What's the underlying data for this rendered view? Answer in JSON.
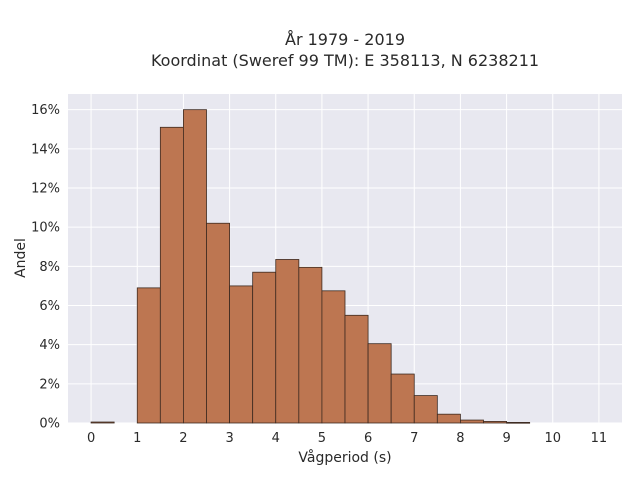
{
  "chart_data": {
    "type": "bar",
    "title_lines": [
      "År 1979 - 2019",
      "Koordinat (Sweref 99 TM): E 358113, N 6238211"
    ],
    "xlabel": "Vågperiod (s)",
    "ylabel": "Andel",
    "bin_width": 0.5,
    "bin_starts": [
      0,
      0.5,
      1,
      1.5,
      2,
      2.5,
      3,
      3.5,
      4,
      4.5,
      5,
      5.5,
      6,
      6.5,
      7,
      7.5,
      8,
      8.5,
      9,
      9.5,
      10,
      10.5
    ],
    "values": [
      0.05,
      0,
      6.9,
      15.1,
      16.0,
      10.2,
      7.0,
      7.7,
      8.35,
      7.95,
      6.75,
      5.5,
      4.05,
      2.5,
      1.4,
      0.45,
      0.15,
      0.08,
      0.03,
      0,
      0,
      0
    ],
    "xlim": [
      -0.5,
      11.5
    ],
    "ylim": [
      0,
      16.8
    ],
    "xticks": [
      0,
      1,
      2,
      3,
      4,
      5,
      6,
      7,
      8,
      9,
      10,
      11
    ],
    "xtick_labels": [
      "0",
      "1",
      "2",
      "3",
      "4",
      "5",
      "6",
      "7",
      "8",
      "9",
      "10",
      "11"
    ],
    "yticks": [
      0,
      2,
      4,
      6,
      8,
      10,
      12,
      14,
      16
    ],
    "ytick_labels": [
      "0%",
      "2%",
      "4%",
      "6%",
      "8%",
      "10%",
      "12%",
      "14%",
      "16%"
    ],
    "grid": true,
    "colors": {
      "bar_fill": "#bd7651",
      "bar_edge": "#3d2a20",
      "plot_bg": "#e8e8f0",
      "grid": "#ffffff"
    }
  }
}
